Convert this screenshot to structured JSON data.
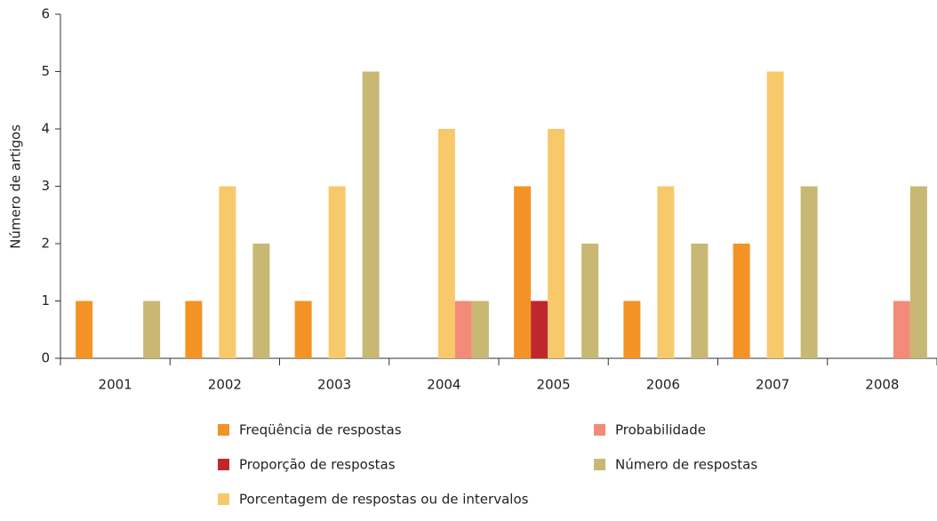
{
  "chart_data": {
    "type": "bar",
    "y_label": "Número de artigos",
    "categories": [
      "2001",
      "2002",
      "2003",
      "2004",
      "2005",
      "2006",
      "2007",
      "2008"
    ],
    "series": [
      {
        "name": "Freqüência de respostas",
        "color": "#f39325",
        "values": [
          1,
          1,
          1,
          0,
          3,
          1,
          2,
          0
        ]
      },
      {
        "name": "Proporção de respostas",
        "color": "#c0272d",
        "values": [
          0,
          0,
          0,
          0,
          1,
          0,
          0,
          0
        ]
      },
      {
        "name": "Porcentagem de respostas ou de intervalos",
        "color": "#f7c96a",
        "values": [
          0,
          3,
          3,
          4,
          4,
          3,
          5,
          0
        ]
      },
      {
        "name": "Probabilidade",
        "color": "#f28c78",
        "values": [
          0,
          0,
          0,
          1,
          0,
          0,
          0,
          1
        ]
      },
      {
        "name": "Número de respostas",
        "color": "#c8b873",
        "values": [
          1,
          2,
          5,
          1,
          2,
          2,
          3,
          3
        ]
      }
    ],
    "ylim": [
      0,
      6
    ],
    "yticks": [
      0,
      1,
      2,
      3,
      4,
      5,
      6
    ]
  }
}
